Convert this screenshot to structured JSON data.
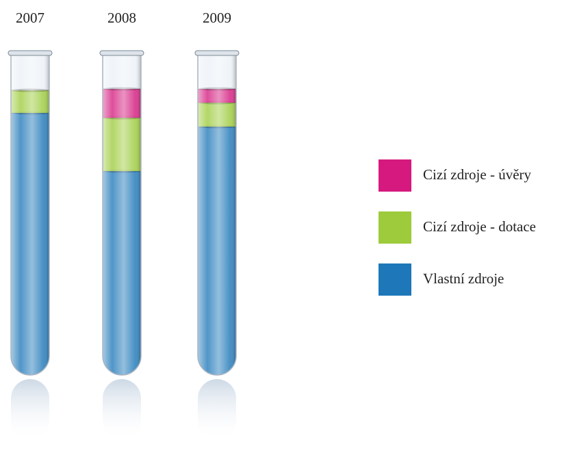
{
  "chart_data": {
    "type": "tube-stack",
    "categories": [
      "2007",
      "2008",
      "2009"
    ],
    "series": [
      {
        "name": "Cizí zdroje - úvěry",
        "color": "#d6197e",
        "values": [
          0,
          42,
          20
        ]
      },
      {
        "name": "Cizí zdroje - dotace",
        "color": "#9dcb3b",
        "values": [
          33,
          78,
          35
        ]
      },
      {
        "name": "Vlastní zdroje",
        "color": "#1d77b8",
        "values": [
          383,
          298,
          363
        ]
      }
    ],
    "ylim": [
      0,
      470
    ]
  }
}
